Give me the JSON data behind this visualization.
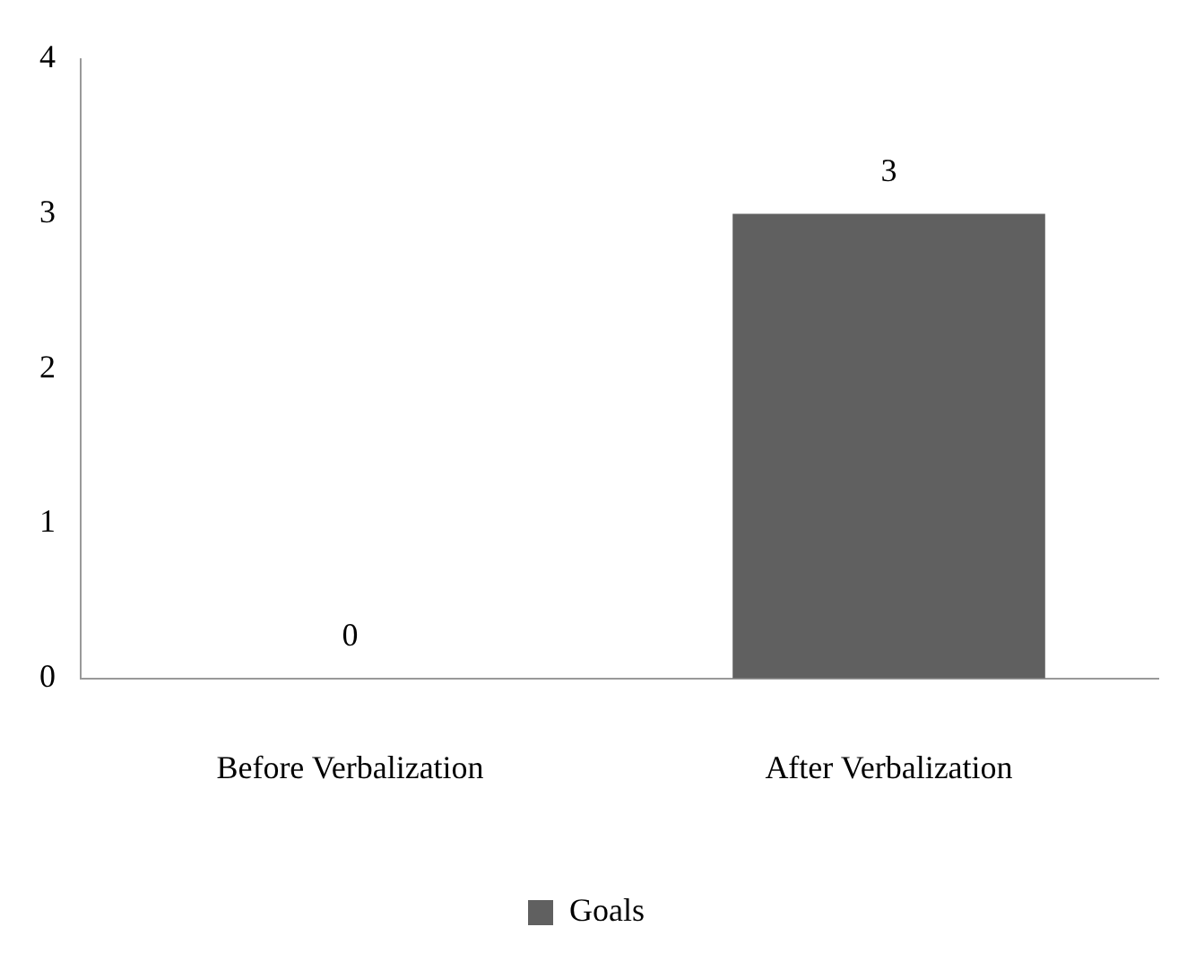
{
  "chart_data": {
    "type": "bar",
    "categories": [
      "Before Verbalization",
      "After Verbalization"
    ],
    "series": [
      {
        "name": "Goals",
        "color": "#606060",
        "values": [
          0,
          3
        ]
      }
    ],
    "ylim": [
      0,
      4
    ],
    "yticks": [
      0,
      1,
      2,
      3,
      4
    ],
    "grid": false,
    "legend": "bottom",
    "data_labels": true
  }
}
